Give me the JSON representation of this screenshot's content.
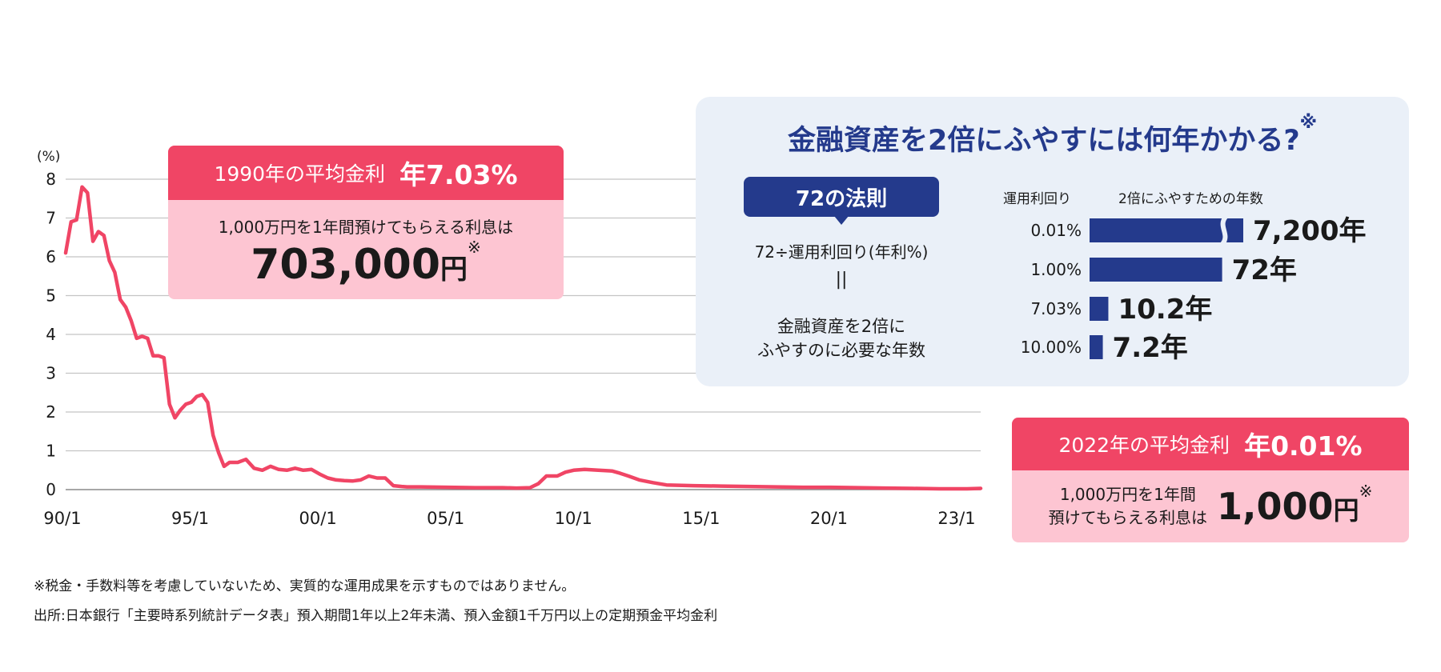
{
  "chart_data": {
    "type": "line",
    "unit_label": "(%)",
    "y_ticks": [
      "8",
      "7",
      "6",
      "5",
      "4",
      "3",
      "2",
      "1",
      "0"
    ],
    "ylim": [
      0,
      8
    ],
    "x_ticks": [
      "90/1",
      "95/1",
      "00/1",
      "05/1",
      "10/1",
      "15/1",
      "20/1",
      "23/1"
    ],
    "grid": true,
    "color": "#f04565",
    "series": [
      {
        "x": [
          1990.0,
          1990.2,
          1990.4,
          1990.6,
          1990.8,
          1991.0,
          1991.2,
          1991.4,
          1991.6,
          1991.8,
          1992.0,
          1992.2,
          1992.4,
          1992.6,
          1992.8,
          1993.0,
          1993.2,
          1993.4,
          1993.6,
          1993.8,
          1994.0,
          1994.2,
          1994.4,
          1994.6,
          1994.8,
          1995.0,
          1995.2,
          1995.4,
          1995.6,
          1995.8,
          1996.0,
          1996.3,
          1996.6,
          1996.9,
          1997.2,
          1997.5,
          1997.8,
          1998.1,
          1998.4,
          1998.7,
          1999.0,
          1999.3,
          1999.6,
          1999.9,
          2000.2,
          2000.5,
          2000.8,
          2001.1,
          2001.4,
          2001.7,
          2002.0,
          2002.3,
          2002.5,
          2003.0,
          2004.0,
          2005.0,
          2006.0,
          2006.5,
          2007.0,
          2007.3,
          2007.6,
          2008.0,
          2008.3,
          2008.6,
          2009.0,
          2009.5,
          2010.0,
          2010.3,
          2010.6,
          2011.0,
          2011.5,
          2012.0,
          2013.0,
          2014.0,
          2015.0,
          2016.0,
          2017.0,
          2018.0,
          2019.0,
          2020.0,
          2021.0,
          2022.0,
          2023.0,
          2023.5
        ],
        "y": [
          6.1,
          6.9,
          6.95,
          7.8,
          7.65,
          6.4,
          6.65,
          6.55,
          5.9,
          5.6,
          4.9,
          4.7,
          4.35,
          3.9,
          3.95,
          3.9,
          3.45,
          3.45,
          3.4,
          2.2,
          1.85,
          2.05,
          2.2,
          2.25,
          2.4,
          2.45,
          2.25,
          1.4,
          0.95,
          0.6,
          0.7,
          0.7,
          0.78,
          0.55,
          0.5,
          0.6,
          0.52,
          0.5,
          0.55,
          0.5,
          0.52,
          0.4,
          0.3,
          0.25,
          0.23,
          0.22,
          0.25,
          0.35,
          0.3,
          0.3,
          0.1,
          0.08,
          0.07,
          0.07,
          0.06,
          0.05,
          0.05,
          0.04,
          0.05,
          0.15,
          0.35,
          0.35,
          0.45,
          0.5,
          0.52,
          0.5,
          0.48,
          0.42,
          0.35,
          0.25,
          0.18,
          0.12,
          0.1,
          0.09,
          0.08,
          0.07,
          0.06,
          0.06,
          0.05,
          0.04,
          0.03,
          0.02,
          0.02,
          0.03
        ]
      }
    ]
  },
  "callout_1990": {
    "label": "1990年の平均金利",
    "value": "年7.03%",
    "desc": "1,000万円を1年間預けてもらえる利息は",
    "amount": "703,000",
    "yen": "円",
    "note": "※"
  },
  "callout_2022": {
    "label": "2022年の平均金利",
    "value": "年0.01%",
    "desc_line1": "1,000万円を1年間",
    "desc_line2": "預けてもらえる利息は",
    "amount": "1,000",
    "yen": "円",
    "note": "※"
  },
  "info_panel": {
    "title": "金融資産を2倍にふやすには何年かかる?",
    "title_note": "※",
    "rule_label": "72の法則",
    "formula": "72÷運用利回り(年利%)",
    "equal_sign": "||",
    "result_line1": "金融資産を2倍に",
    "result_line2": "ふやすのに必要な年数",
    "col_rate": "運用利回り",
    "col_years": "2倍にふやすための年数",
    "bar_color": "#243a8c",
    "rows": [
      {
        "rate": "0.01%",
        "value": 7200,
        "years": "7,200年",
        "broken": true
      },
      {
        "rate": "1.00%",
        "value": 72,
        "years": "72年",
        "broken": false
      },
      {
        "rate": "7.03%",
        "value": 10.2,
        "years": "10.2年",
        "broken": false
      },
      {
        "rate": "10.00%",
        "value": 7.2,
        "years": "7.2年",
        "broken": false
      }
    ]
  },
  "footnotes": {
    "note": "※税金・手数料等を考慮していないため、実質的な運用成果を示すものではありません。",
    "source": "出所:日本銀行「主要時系列統計データ表」預入期間1年以上2年未満、預入金額1千万円以上の定期預金平均金利"
  }
}
